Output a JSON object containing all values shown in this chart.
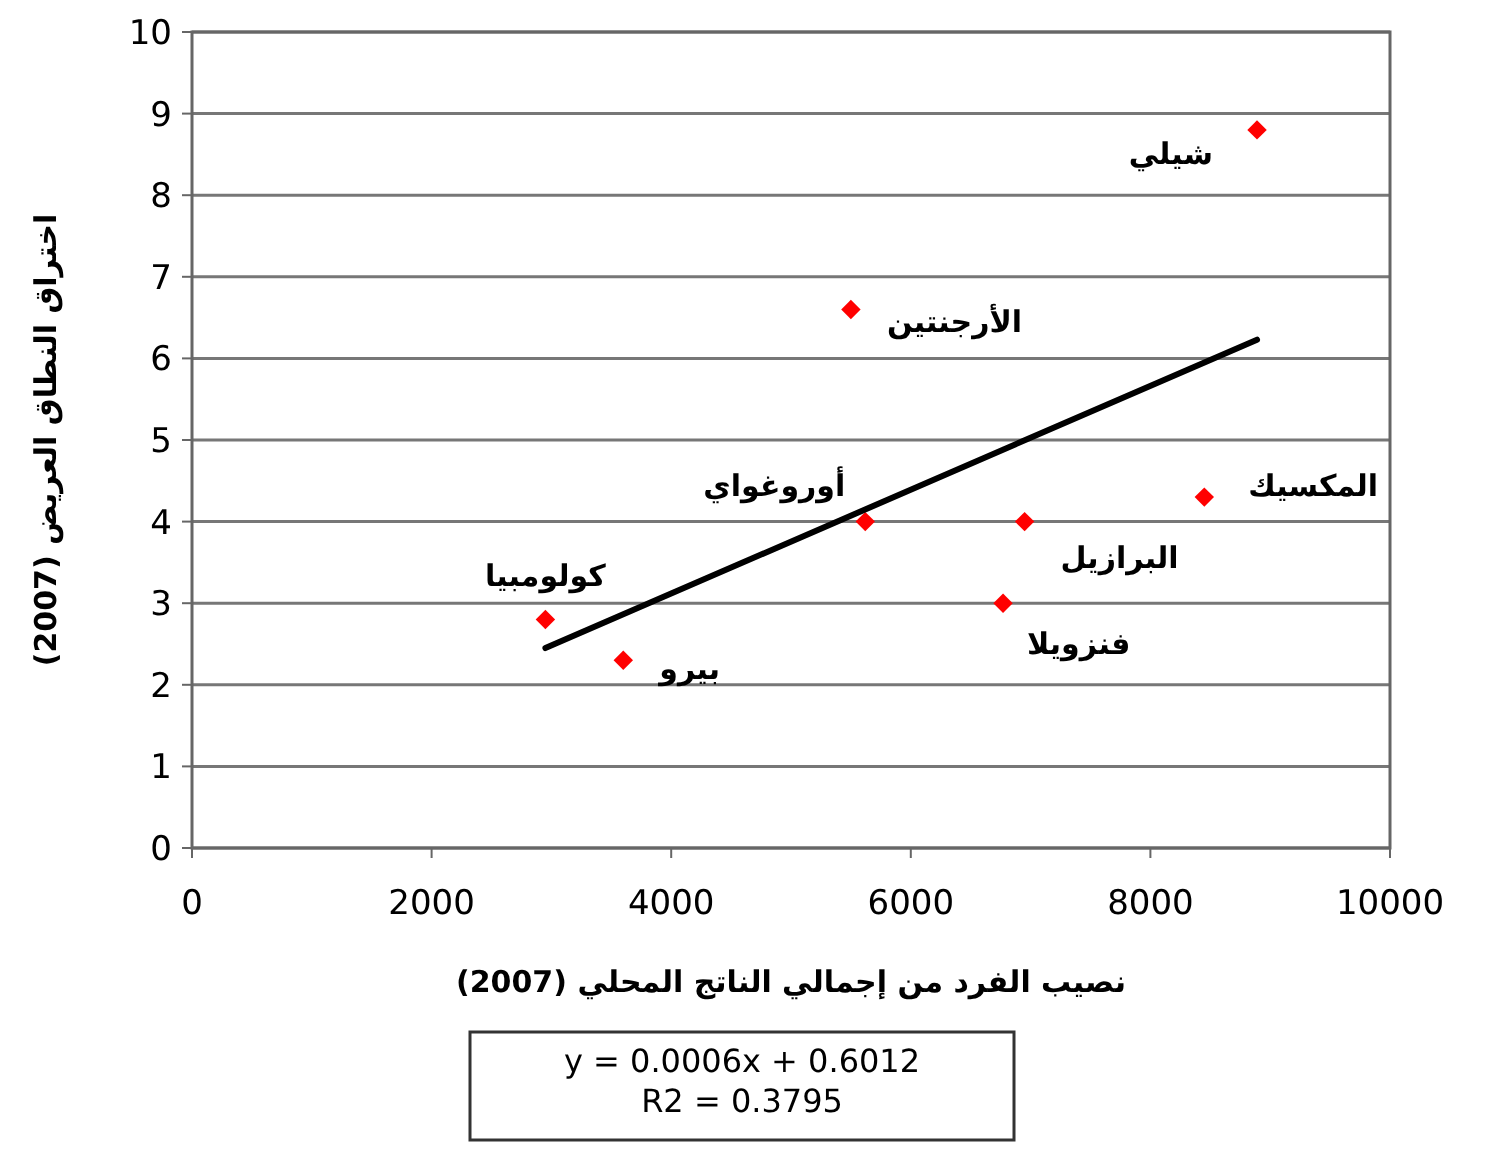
{
  "chart_data": {
    "type": "scatter",
    "xlabel": "نصيب الفرد من إجمالي الناتج المحلي (2007)",
    "ylabel": "اختراق النطاق العريض (2007)",
    "xlim": [
      0,
      10000
    ],
    "xticks": [
      0,
      2000,
      4000,
      6000,
      8000,
      10000
    ],
    "ylim": [
      0,
      10
    ],
    "yticks": [
      0,
      1,
      2,
      3,
      4,
      5,
      6,
      7,
      8,
      9,
      10
    ],
    "grid": "y",
    "series": [
      {
        "marker": "diamond",
        "color": "#ff0000",
        "x": [
          8890,
          5500,
          5620,
          6950,
          8450,
          6770,
          2950,
          3600
        ],
        "values": [
          8.8,
          6.6,
          4.0,
          4.0,
          4.3,
          3.0,
          2.8,
          2.3
        ]
      },
      {
        "type": "line",
        "color": "#000000",
        "x": [
          2950,
          8890
        ],
        "values": [
          2.45,
          6.23
        ],
        "line_style": "solid"
      }
    ],
    "annotations": [
      {
        "text": "شيلي",
        "x": 8890,
        "y": 8.8
      },
      {
        "text": "الأرجنتين",
        "x": 5500,
        "y": 6.6
      },
      {
        "text": "أوروغواي",
        "x": 5620,
        "y": 4.0
      },
      {
        "text": "البرازيل",
        "x": 6950,
        "y": 4.0
      },
      {
        "text": "المكسيك",
        "x": 8450,
        "y": 4.3
      },
      {
        "text": "فنزويلا",
        "x": 6770,
        "y": 3.0
      },
      {
        "text": "كولومبيا",
        "x": 2950,
        "y": 2.8
      },
      {
        "text": "بيرو",
        "x": 3600,
        "y": 2.3
      },
      "y = 0.0006x + 0.6012",
      "R2 = 0.3795"
    ]
  }
}
